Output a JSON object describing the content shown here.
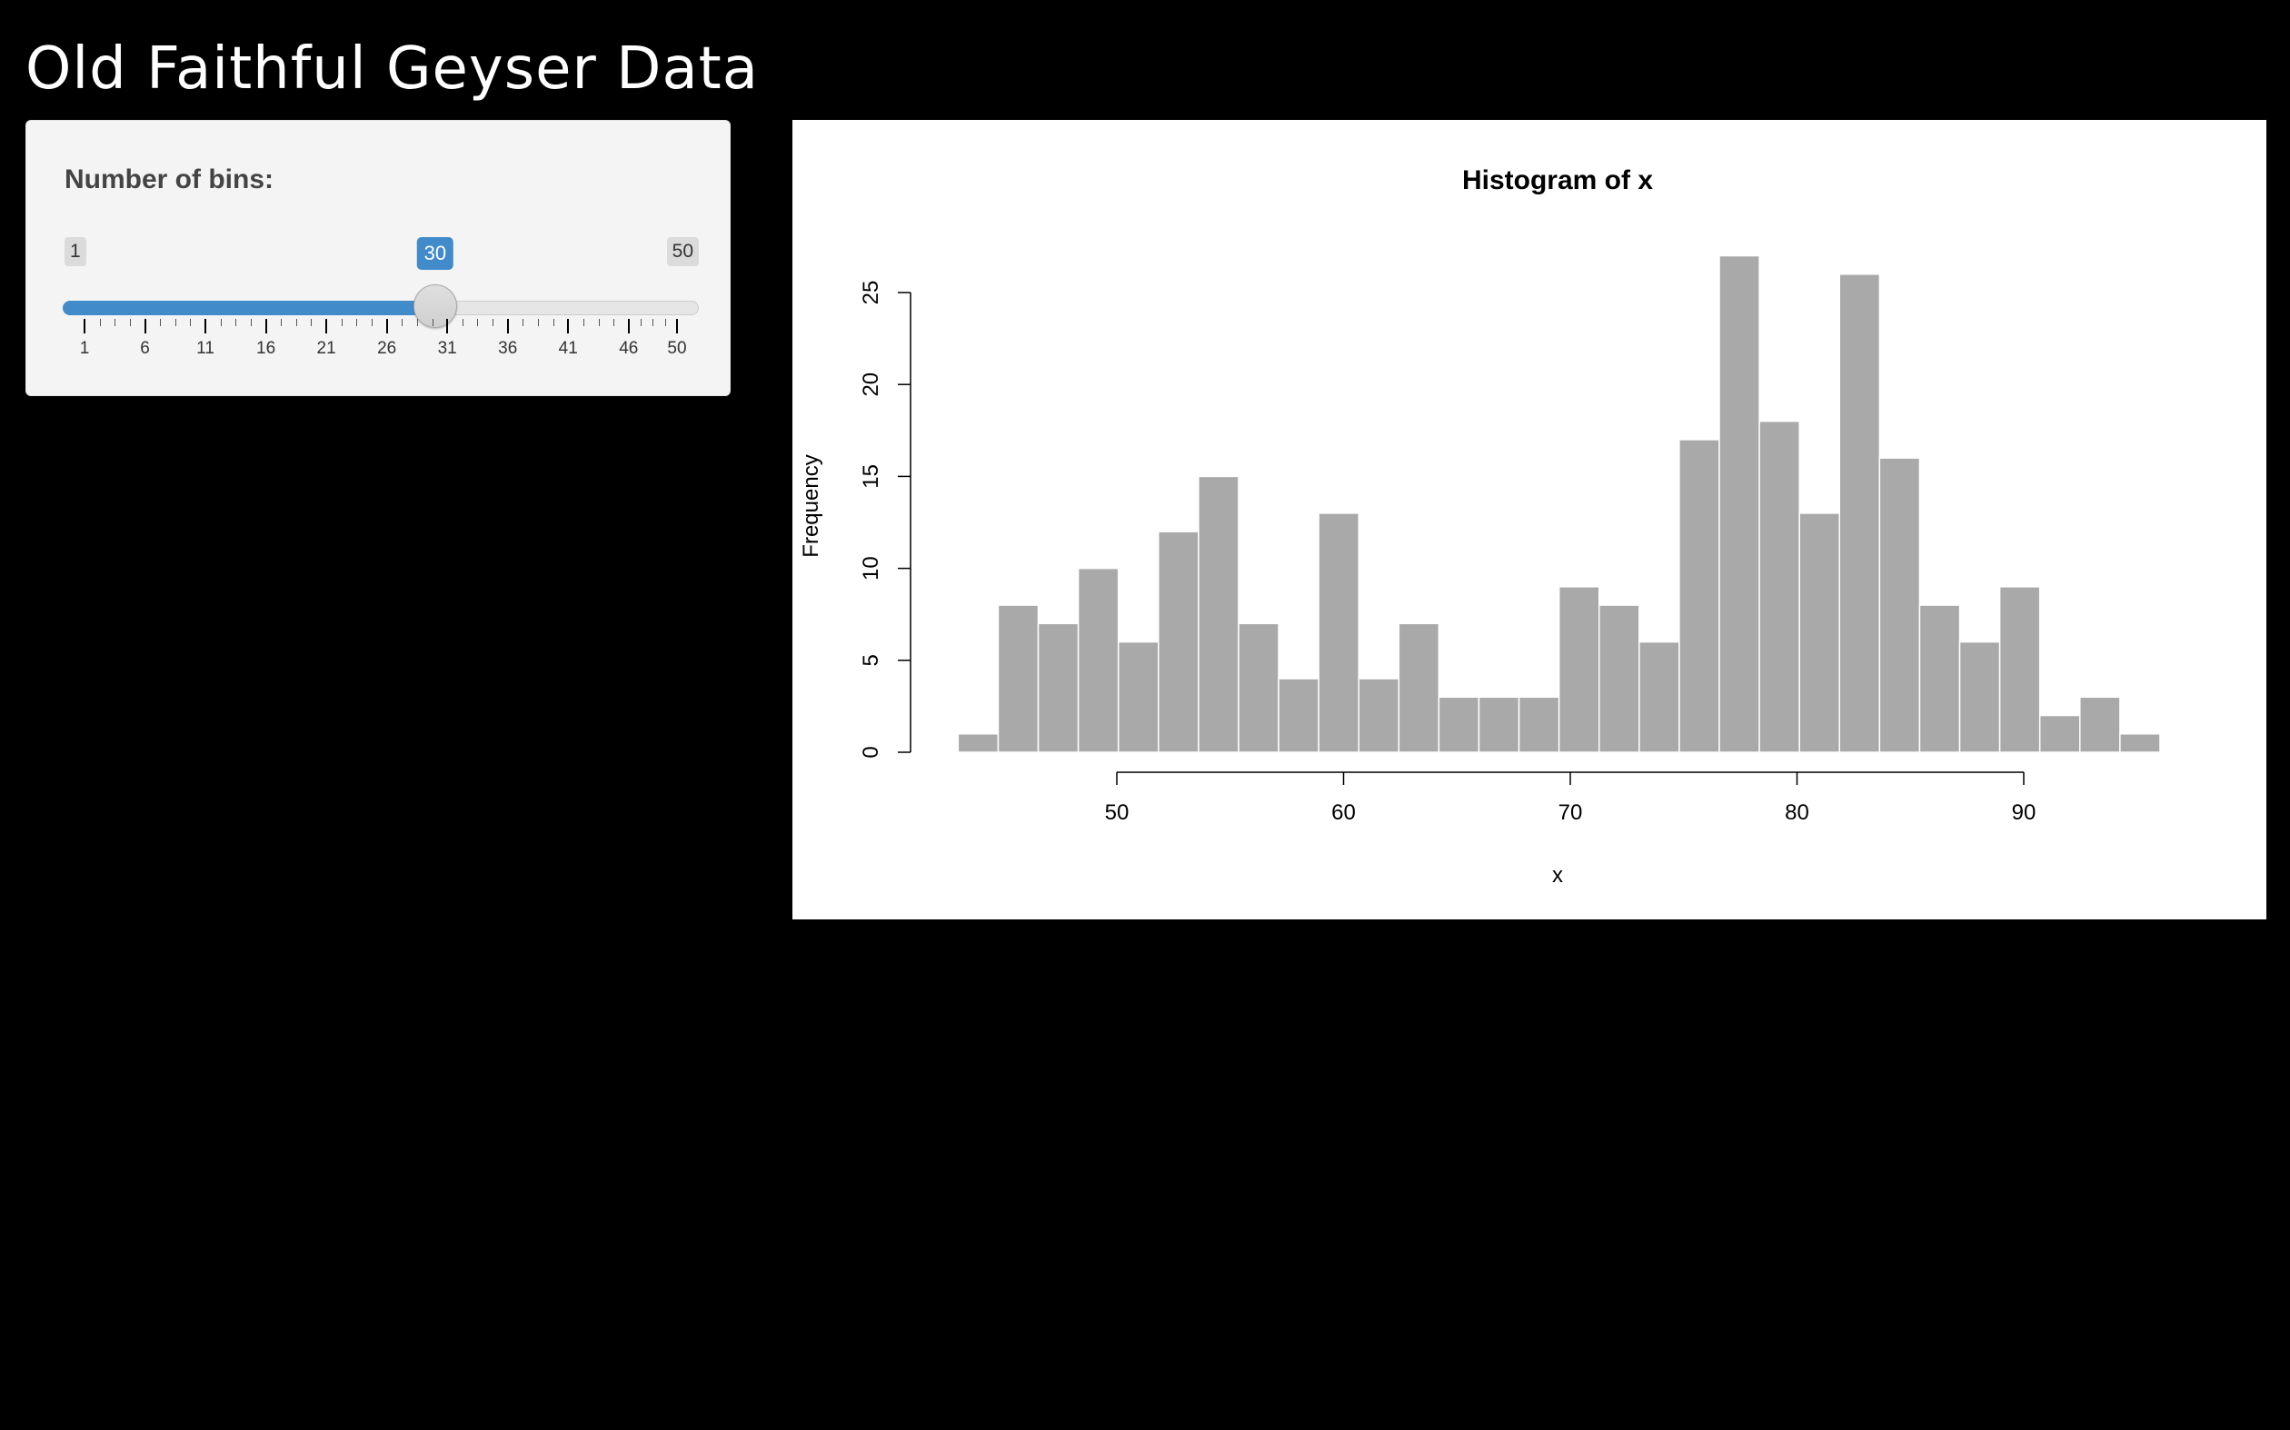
{
  "page": {
    "title": "Old Faithful Geyser Data"
  },
  "sidebar": {
    "bins_label": "Number of bins:",
    "slider": {
      "min": 1,
      "max": 50,
      "value": 30,
      "min_label": "1",
      "max_label": "50",
      "value_label": "30",
      "tick_labels": [
        "1",
        "6",
        "11",
        "16",
        "21",
        "26",
        "31",
        "36",
        "41",
        "46",
        "50"
      ],
      "accent_color": "#428bca"
    }
  },
  "chart_data": {
    "type": "bar",
    "title": "Histogram of x",
    "xlabel": "x",
    "ylabel": "Frequency",
    "bin_start": 43,
    "bin_width": 1.767,
    "values": [
      1,
      8,
      7,
      10,
      6,
      12,
      15,
      7,
      4,
      13,
      4,
      7,
      3,
      3,
      3,
      9,
      8,
      6,
      17,
      27,
      18,
      13,
      26,
      16,
      8,
      6,
      9,
      2,
      3,
      1
    ],
    "x_ticks": [
      "50",
      "60",
      "70",
      "80",
      "90"
    ],
    "y_ticks": [
      "0",
      "5",
      "10",
      "15",
      "20",
      "25"
    ],
    "xlim": [
      50,
      90
    ],
    "ylim": [
      0,
      25
    ],
    "bar_color": "#a9a9a9",
    "bar_border_color": "#ffffff",
    "grid": false,
    "legend": "none"
  }
}
